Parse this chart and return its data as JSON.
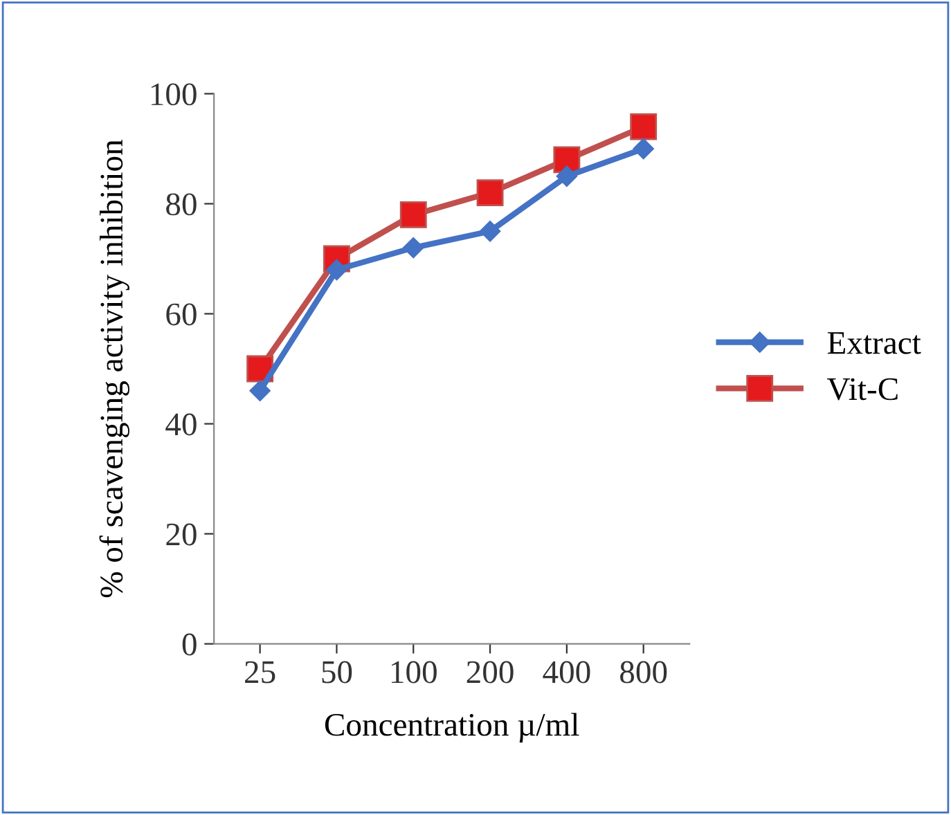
{
  "chart_data": {
    "type": "line",
    "xlabel": "Concentration µ/ml",
    "ylabel": "% of scavenging activity inhibition",
    "categories": [
      "25",
      "50",
      "100",
      "200",
      "400",
      "800"
    ],
    "series": [
      {
        "name": "Extract",
        "color": "#4472c4",
        "values": [
          46,
          68,
          72,
          75,
          85,
          90
        ],
        "marker": "diamond"
      },
      {
        "name": "Vit-C",
        "color": "#c0504d",
        "values": [
          50,
          70,
          78,
          82,
          88,
          94
        ],
        "marker": "square"
      }
    ],
    "ylim": [
      0,
      100
    ],
    "yticks": [
      0,
      20,
      40,
      60,
      80,
      100
    ],
    "grid": false,
    "legend": "right",
    "line_style": "solid"
  }
}
